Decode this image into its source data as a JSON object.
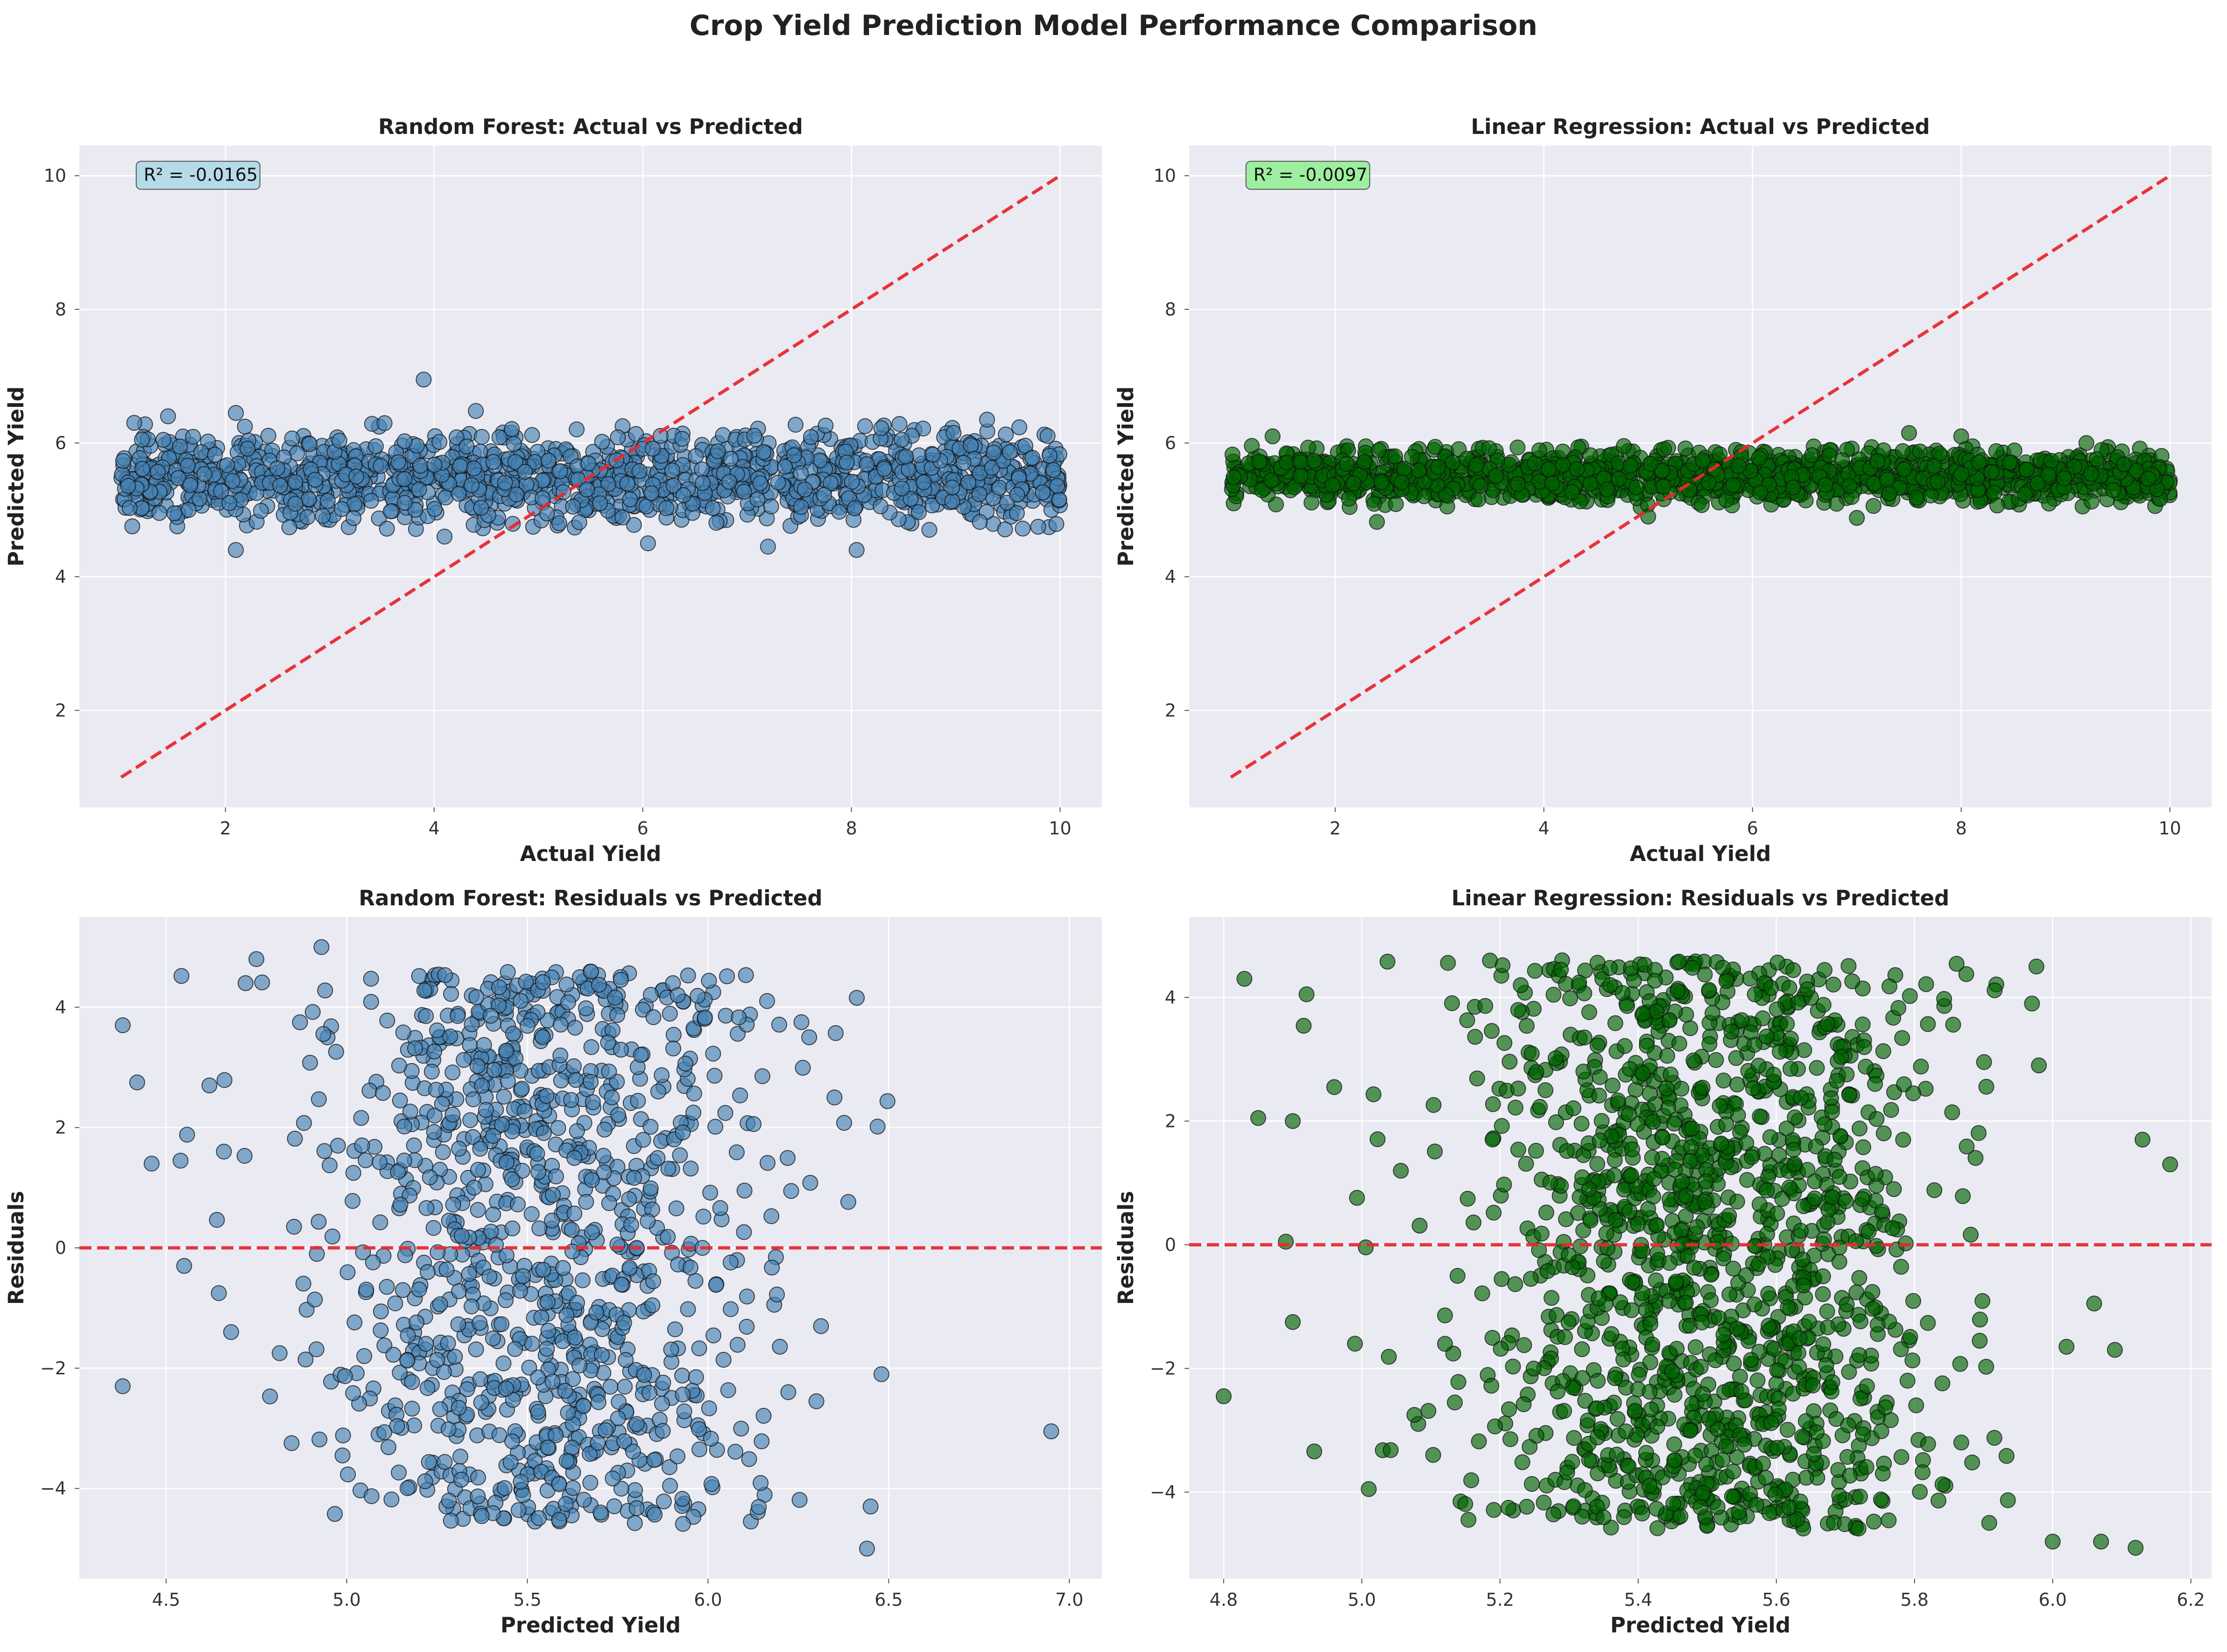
{
  "figure": {
    "title": "Crop Yield Prediction Model Performance Comparison",
    "background": "#ffffff",
    "axes_background": "#eaeaf2",
    "grid_color": "#ffffff",
    "reference_line_color": "#e8292e"
  },
  "chart_data": [
    {
      "type": "scatter",
      "title": "Random Forest: Actual vs Predicted",
      "xlabel": "Actual Yield",
      "ylabel": "Predicted Yield",
      "xlim": [
        0.6,
        10.4
      ],
      "ylim": [
        0.55,
        10.45
      ],
      "xticks": [
        2,
        4,
        6,
        8,
        10
      ],
      "yticks": [
        2,
        4,
        6,
        8,
        10
      ],
      "grid": true,
      "point_color": "#4682b4",
      "point_alpha": 0.65,
      "annotation": {
        "text": "R² = -0.0165",
        "background": "#add8e6",
        "at": [
          1.4,
          9.95
        ]
      },
      "reference_line": {
        "from": [
          1,
          1
        ],
        "to": [
          10,
          10
        ],
        "style": "dashed"
      },
      "point_cloud": {
        "n": 1300,
        "x_range": [
          1,
          10
        ],
        "y_center": 5.5,
        "y_spread": 0.35
      },
      "outliers": [
        [
          1.2,
          6.05
        ],
        [
          1.45,
          6.4
        ],
        [
          2.1,
          6.45
        ],
        [
          2.1,
          4.4
        ],
        [
          3.9,
          6.95
        ],
        [
          4.4,
          6.48
        ],
        [
          4.1,
          4.6
        ],
        [
          6.05,
          4.5
        ],
        [
          7.2,
          4.45
        ],
        [
          8.05,
          4.4
        ],
        [
          5.2,
          4.8
        ],
        [
          9.3,
          6.35
        ]
      ]
    },
    {
      "type": "scatter",
      "title": "Linear Regression: Actual vs Predicted",
      "xlabel": "Actual Yield",
      "ylabel": "Predicted Yield",
      "xlim": [
        0.6,
        10.4
      ],
      "ylim": [
        0.55,
        10.45
      ],
      "xticks": [
        2,
        4,
        6,
        8,
        10
      ],
      "yticks": [
        2,
        4,
        6,
        8,
        10
      ],
      "grid": true,
      "point_color": "#006400",
      "point_alpha": 0.65,
      "annotation": {
        "text": "R² = -0.0097",
        "background": "#90ee90",
        "at": [
          1.4,
          9.95
        ]
      },
      "reference_line": {
        "from": [
          1,
          1
        ],
        "to": [
          10,
          10
        ],
        "style": "dashed"
      },
      "point_cloud": {
        "n": 1400,
        "x_range": [
          1,
          10
        ],
        "y_center": 5.5,
        "y_spread": 0.2
      },
      "outliers": [
        [
          1.4,
          6.1
        ],
        [
          2.4,
          4.82
        ],
        [
          5.0,
          4.9
        ],
        [
          7.5,
          6.15
        ],
        [
          7.0,
          4.88
        ],
        [
          8.0,
          6.1
        ],
        [
          9.2,
          6.0
        ]
      ]
    },
    {
      "type": "scatter",
      "title": "Random Forest: Residuals vs Predicted",
      "xlabel": "Predicted Yield",
      "ylabel": "Residuals",
      "xlim": [
        4.26,
        7.09
      ],
      "ylim": [
        -5.5,
        5.5
      ],
      "xticks": [
        4.5,
        5.0,
        5.5,
        6.0,
        6.5,
        7.0
      ],
      "yticks": [
        -4,
        -2,
        0,
        2,
        4
      ],
      "grid": true,
      "point_color": "#4682b4",
      "point_alpha": 0.65,
      "reference_line": {
        "y": 0,
        "style": "dashed"
      },
      "point_cloud": {
        "n": 1050,
        "x_center": 5.55,
        "x_spread": 0.3,
        "residual_range": [
          -4.6,
          4.6
        ]
      },
      "outliers": [
        [
          4.38,
          3.7
        ],
        [
          4.38,
          -2.3
        ],
        [
          4.42,
          2.75
        ],
        [
          4.46,
          1.4
        ],
        [
          4.54,
          1.45
        ],
        [
          4.55,
          -0.3
        ],
        [
          4.62,
          2.7
        ],
        [
          4.66,
          1.6
        ],
        [
          4.68,
          -1.4
        ],
        [
          4.72,
          4.4
        ],
        [
          4.75,
          4.8
        ],
        [
          4.93,
          5.0
        ],
        [
          6.48,
          -2.1
        ],
        [
          6.44,
          -5.0
        ],
        [
          6.45,
          -4.3
        ],
        [
          6.95,
          -3.05
        ],
        [
          6.35,
          2.5
        ],
        [
          6.28,
          3.5
        ],
        [
          6.3,
          -2.55
        ]
      ]
    },
    {
      "type": "scatter",
      "title": "Linear Regression: Residuals vs Predicted",
      "xlabel": "Predicted Yield",
      "ylabel": "Residuals",
      "xlim": [
        4.75,
        6.23
      ],
      "ylim": [
        -5.4,
        5.3
      ],
      "xticks": [
        4.8,
        5.0,
        5.2,
        5.4,
        5.6,
        5.8,
        6.0,
        6.2
      ],
      "yticks": [
        -4,
        -2,
        0,
        2,
        4
      ],
      "grid": true,
      "point_color": "#006400",
      "point_alpha": 0.65,
      "reference_line": {
        "y": 0,
        "style": "dashed"
      },
      "point_cloud": {
        "n": 1400,
        "x_center": 5.5,
        "x_spread": 0.17,
        "residual_range": [
          -4.6,
          4.6
        ]
      },
      "outliers": [
        [
          4.8,
          -2.45
        ],
        [
          4.83,
          4.3
        ],
        [
          4.85,
          2.05
        ],
        [
          4.89,
          0.05
        ],
        [
          4.9,
          -1.25
        ],
        [
          4.9,
          2.0
        ],
        [
          4.92,
          4.05
        ],
        [
          4.96,
          2.55
        ],
        [
          4.99,
          -1.6
        ],
        [
          5.01,
          -3.95
        ],
        [
          6.13,
          1.7
        ],
        [
          6.17,
          1.3
        ],
        [
          6.12,
          -4.9
        ],
        [
          6.07,
          -4.8
        ],
        [
          6.09,
          -1.7
        ],
        [
          6.06,
          -0.95
        ],
        [
          6.02,
          -1.65
        ],
        [
          6.0,
          -4.8
        ],
        [
          5.97,
          3.9
        ],
        [
          5.98,
          2.9
        ]
      ]
    }
  ]
}
